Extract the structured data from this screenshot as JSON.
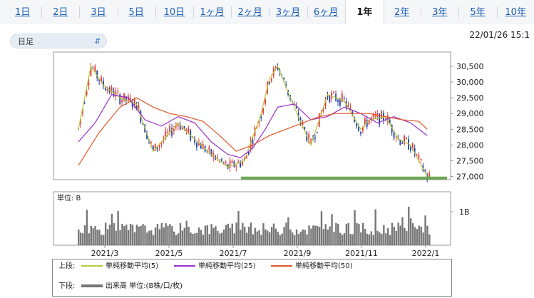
{
  "tabs": [
    {
      "label": "1日",
      "active": false
    },
    {
      "label": "2日",
      "active": false
    },
    {
      "label": "3日",
      "active": false
    },
    {
      "label": "5日",
      "active": false
    },
    {
      "label": "10日",
      "active": false
    },
    {
      "label": "1ヶ月",
      "active": false
    },
    {
      "label": "2ヶ月",
      "active": false
    },
    {
      "label": "3ヶ月",
      "active": false
    },
    {
      "label": "6ヶ月",
      "active": false
    },
    {
      "label": "1年",
      "active": true
    },
    {
      "label": "2年",
      "active": false
    },
    {
      "label": "3年",
      "active": false
    },
    {
      "label": "5年",
      "active": false
    },
    {
      "label": "10年",
      "active": false
    }
  ],
  "controls": {
    "period_select": "日足",
    "timestamp": "22/01/26 15:1"
  },
  "chart_data": {
    "type": "line",
    "price": {
      "y_ticks": [
        27000,
        27500,
        28000,
        28500,
        29000,
        29500,
        30000,
        30500
      ],
      "y_tick_labels": [
        "27,000",
        "27,500",
        "28,000",
        "28,500",
        "29,000",
        "29,500",
        "30,000",
        "30,500"
      ],
      "ylim": [
        26900,
        30950
      ],
      "support_level": 26950,
      "support_color": "#6aa84f",
      "candle_up_color": "#e53935",
      "candle_down_color": "#1f3fa8",
      "series": [
        {
          "name": "単純移動平均(5)",
          "color": "#b7c93a",
          "points": [
            [
              0,
              28500
            ],
            [
              6,
              30500
            ],
            [
              12,
              29900
            ],
            [
              20,
              29500
            ],
            [
              28,
              29300
            ],
            [
              36,
              27800
            ],
            [
              48,
              28700
            ],
            [
              54,
              28300
            ],
            [
              64,
              27700
            ],
            [
              72,
              27300
            ],
            [
              80,
              27500
            ],
            [
              88,
              29000
            ],
            [
              92,
              30100
            ],
            [
              96,
              30500
            ],
            [
              104,
              29200
            ],
            [
              112,
              28000
            ],
            [
              120,
              29600
            ],
            [
              128,
              29400
            ],
            [
              136,
              28500
            ],
            [
              140,
              28800
            ],
            [
              148,
              28900
            ],
            [
              154,
              28200
            ],
            [
              160,
              28000
            ],
            [
              164,
              27500
            ],
            [
              168,
              27000
            ]
          ]
        },
        {
          "name": "単純移動平均(25)",
          "color": "#9b30c8",
          "points": [
            [
              0,
              28100
            ],
            [
              8,
              28700
            ],
            [
              16,
              29600
            ],
            [
              24,
              29500
            ],
            [
              32,
              28800
            ],
            [
              40,
              28600
            ],
            [
              48,
              28900
            ],
            [
              56,
              28700
            ],
            [
              64,
              28100
            ],
            [
              72,
              27700
            ],
            [
              78,
              27600
            ],
            [
              84,
              27900
            ],
            [
              90,
              28500
            ],
            [
              96,
              29200
            ],
            [
              104,
              29300
            ],
            [
              112,
              28800
            ],
            [
              120,
              28900
            ],
            [
              128,
              29200
            ],
            [
              136,
              29000
            ],
            [
              144,
              28700
            ],
            [
              152,
              28900
            ],
            [
              160,
              28700
            ],
            [
              168,
              28300
            ]
          ]
        },
        {
          "name": "単純移動平均(50)",
          "color": "#e2572b",
          "points": [
            [
              0,
              27350
            ],
            [
              10,
              28400
            ],
            [
              20,
              29200
            ],
            [
              28,
              29500
            ],
            [
              36,
              29200
            ],
            [
              44,
              29000
            ],
            [
              52,
              28900
            ],
            [
              60,
              28750
            ],
            [
              68,
              28300
            ],
            [
              76,
              27800
            ],
            [
              84,
              28000
            ],
            [
              92,
              28300
            ],
            [
              100,
              28500
            ],
            [
              108,
              28700
            ],
            [
              116,
              28900
            ],
            [
              124,
              29000
            ],
            [
              132,
              29000
            ],
            [
              140,
              29000
            ],
            [
              148,
              28900
            ],
            [
              156,
              28800
            ],
            [
              164,
              28750
            ],
            [
              168,
              28500
            ]
          ]
        }
      ]
    },
    "volume": {
      "unit_label": "単位: B",
      "tick_label": "1B",
      "bar_color": "#777777"
    },
    "x_tick_labels": [
      "2021/3",
      "2021/5",
      "2021/7",
      "2021/9",
      "2021/11",
      "2022/1"
    ],
    "n_days": 170
  },
  "legend": {
    "upper_label": "上段:",
    "lower_label": "下段:",
    "lower_item": "出来高 単位:(B株/口/枚)"
  }
}
